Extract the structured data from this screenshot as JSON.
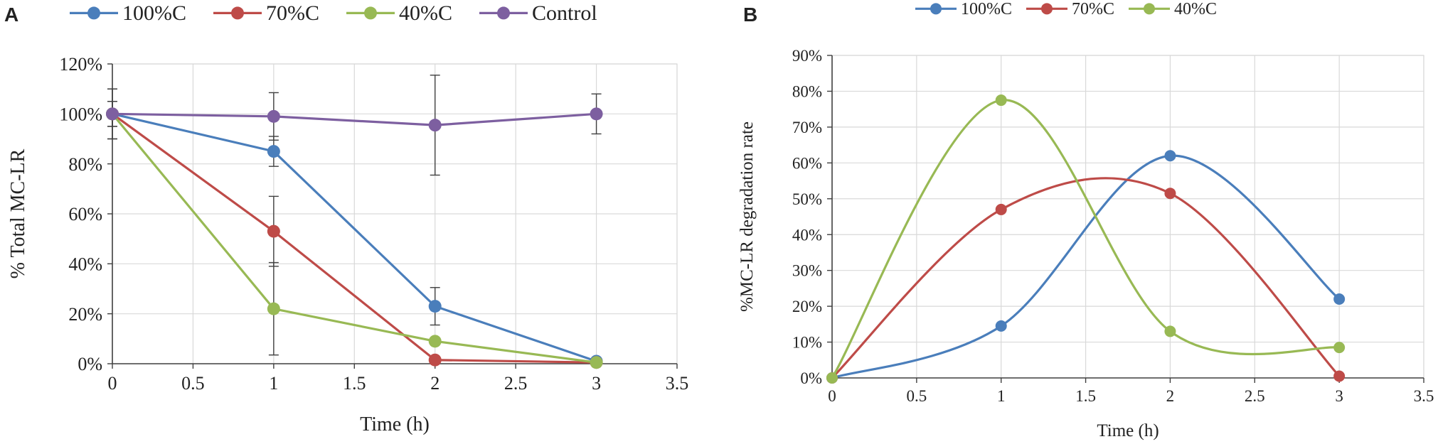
{
  "chart_data": [
    {
      "panel": "A",
      "type": "line",
      "xlabel": "Time (h)",
      "ylabel": "% Total MC-LR",
      "xlim": [
        0,
        3.5
      ],
      "ylim": [
        0,
        1.2
      ],
      "xticks": [
        0,
        0.5,
        1,
        1.5,
        2,
        2.5,
        3,
        3.5
      ],
      "xtick_labels": [
        "0",
        "0.5",
        "1",
        "1.5",
        "2",
        "2.5",
        "3",
        "3.5"
      ],
      "yticks": [
        0,
        0.2,
        0.4,
        0.6,
        0.8,
        1.0,
        1.2
      ],
      "ytick_labels": [
        "0%",
        "20%",
        "40%",
        "60%",
        "80%",
        "100%",
        "120%"
      ],
      "grid": true,
      "legend": "top",
      "series": [
        {
          "name": "100%C",
          "color": "#4a7ebb",
          "x": [
            0,
            1,
            2,
            3
          ],
          "values": [
            1.0,
            0.85,
            0.23,
            0.01
          ],
          "errors": [
            0.05,
            0.06,
            0.075,
            0.0
          ]
        },
        {
          "name": "70%C",
          "color": "#be4b48",
          "x": [
            0,
            1,
            2,
            3
          ],
          "values": [
            1.0,
            0.53,
            0.015,
            0.005
          ],
          "errors": [
            0.05,
            0.14,
            0.0,
            0.0
          ]
        },
        {
          "name": "40%C",
          "color": "#98b954",
          "x": [
            0,
            1,
            2,
            3
          ],
          "values": [
            1.0,
            0.22,
            0.09,
            0.005
          ],
          "errors": [
            0.1,
            0.185,
            0.0,
            0.0
          ]
        },
        {
          "name": "Control",
          "color": "#7d5fa0",
          "x": [
            0,
            1,
            2,
            3
          ],
          "values": [
            1.0,
            0.99,
            0.955,
            1.0
          ],
          "errors": [
            0.1,
            0.095,
            0.2,
            0.08
          ]
        }
      ]
    },
    {
      "panel": "B",
      "type": "line",
      "smooth": true,
      "xlabel": "Time (h)",
      "ylabel": "%MC-LR degradation  rate",
      "xlim": [
        0,
        3.5
      ],
      "ylim": [
        0,
        0.9
      ],
      "xticks": [
        0,
        0.5,
        1,
        1.5,
        2,
        2.5,
        3,
        3.5
      ],
      "xtick_labels": [
        "0",
        "0.5",
        "1",
        "1.5",
        "2",
        "2.5",
        "3",
        "3.5"
      ],
      "yticks": [
        0,
        0.1,
        0.2,
        0.3,
        0.4,
        0.5,
        0.6,
        0.7,
        0.8,
        0.9
      ],
      "ytick_labels": [
        "0%",
        "10%",
        "20%",
        "30%",
        "40%",
        "50%",
        "60%",
        "70%",
        "80%",
        "90%"
      ],
      "grid": true,
      "legend": "top",
      "series": [
        {
          "name": "100%C",
          "color": "#4a7ebb",
          "x": [
            0,
            1,
            2,
            3
          ],
          "values": [
            0.0,
            0.145,
            0.62,
            0.22
          ]
        },
        {
          "name": "70%C",
          "color": "#be4b48",
          "x": [
            0,
            1,
            2,
            3
          ],
          "values": [
            0.0,
            0.47,
            0.515,
            0.005
          ]
        },
        {
          "name": "40%C",
          "color": "#98b954",
          "x": [
            0,
            1,
            2,
            3
          ],
          "values": [
            0.0,
            0.775,
            0.13,
            0.085
          ]
        }
      ]
    }
  ]
}
